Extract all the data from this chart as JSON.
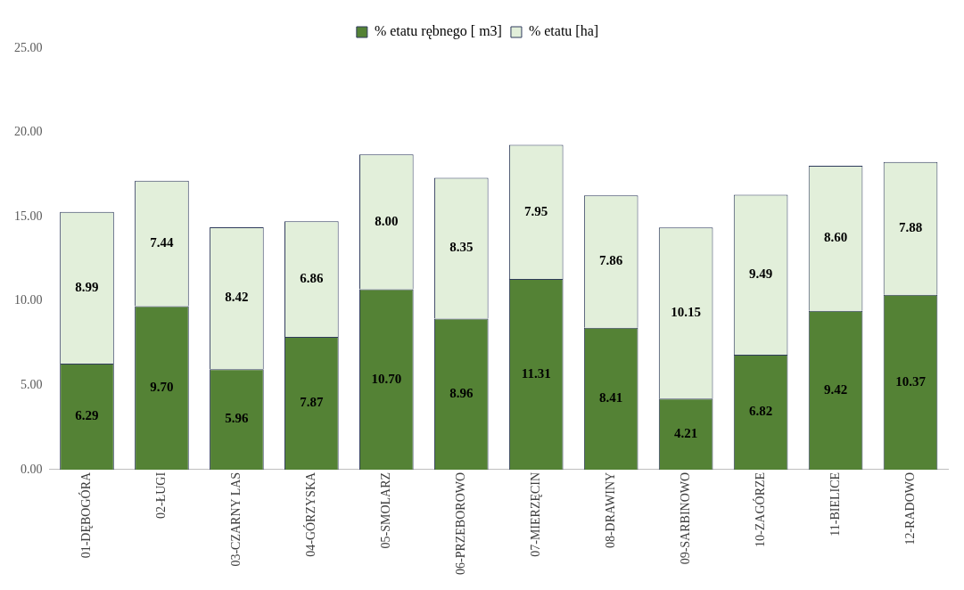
{
  "chart_data": {
    "type": "bar",
    "stacked": true,
    "legend": "top",
    "grid": false,
    "categories": [
      "01-DĘBOGÓRA",
      "02-ŁUGI",
      "03-CZARNY LAS",
      "04-GÓRZYSKA",
      "05-SMOLARZ",
      "06-PRZEBOROWO",
      "07-MIERZĘCIN",
      "08-DRAWINY",
      "09-SARBINOWO",
      "10-ZAGÓRZE",
      "11-BIELICE",
      "12-RADOWO"
    ],
    "ylim": [
      0,
      25
    ],
    "yticks": [
      {
        "value": 0,
        "label": "0.00"
      },
      {
        "value": 5,
        "label": "5.00"
      },
      {
        "value": 10,
        "label": "10.00"
      },
      {
        "value": 15,
        "label": "15.00"
      },
      {
        "value": 20,
        "label": "20.00"
      },
      {
        "value": 25,
        "label": "25.00"
      }
    ],
    "series": [
      {
        "name": "% etatu rębnego [ m3]",
        "color": "#548235",
        "values": [
          6.29,
          9.7,
          5.96,
          7.87,
          10.7,
          8.96,
          11.31,
          8.41,
          4.21,
          6.82,
          9.42,
          10.37
        ],
        "value_labels": [
          "6.29",
          "9.70",
          "5.96",
          "7.87",
          "10.70",
          "8.96",
          "11.31",
          "8.41",
          "4.21",
          "6.82",
          "9.42",
          "10.37"
        ]
      },
      {
        "name": "% etatu [ha]",
        "color": "#e2efda",
        "values": [
          8.99,
          7.44,
          8.42,
          6.86,
          8.0,
          8.35,
          7.95,
          7.86,
          10.15,
          9.49,
          8.6,
          7.88
        ],
        "value_labels": [
          "8.99",
          "7.44",
          "8.42",
          "6.86",
          "8.00",
          "8.35",
          "7.95",
          "7.86",
          "10.15",
          "9.49",
          "8.60",
          "7.88"
        ]
      }
    ]
  }
}
